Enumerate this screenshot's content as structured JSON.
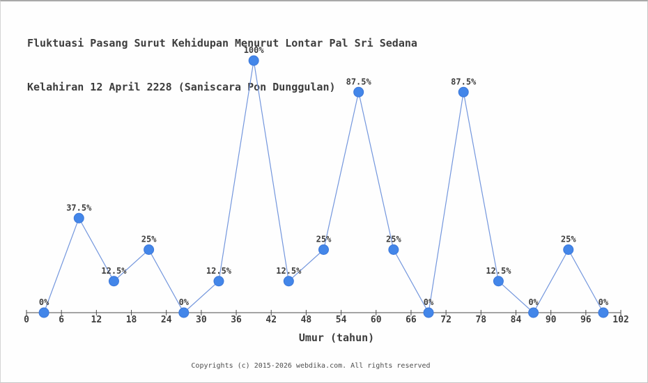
{
  "chart_data": {
    "type": "line",
    "title": "Fluktuasi Pasang Surut Kehidupan Menurut Lontar Pal Sri Sedana Kelahiran 12 April 2228 (Saniscara Pon Dunggulan)",
    "title_lines": [
      "Fluktuasi Pasang Surut Kehidupan Menurut Lontar Pal Sri Sedana",
      "Kelahiran 12 April 2228 (Saniscara Pon Dunggulan)"
    ],
    "xlabel": "Umur (tahun)",
    "ylabel": "",
    "x": [
      3,
      9,
      15,
      21,
      27,
      33,
      39,
      45,
      51,
      57,
      63,
      69,
      75,
      81,
      87,
      93,
      99
    ],
    "values": [
      0,
      37.5,
      12.5,
      25,
      0,
      12.5,
      100,
      12.5,
      25,
      87.5,
      25,
      0,
      87.5,
      12.5,
      0,
      25,
      0
    ],
    "point_labels": [
      "0%",
      "37.5%",
      "12.5%",
      "25%",
      "0%",
      "12.5%",
      "100%",
      "12.5%",
      "25%",
      "87.5%",
      "25%",
      "0%",
      "87.5%",
      "12.5%",
      "0%",
      "25%",
      "0%"
    ],
    "x_ticks": [
      0,
      6,
      12,
      18,
      24,
      30,
      36,
      42,
      48,
      54,
      60,
      66,
      72,
      78,
      84,
      90,
      96,
      102
    ],
    "xlim": [
      0,
      102
    ],
    "ylim": [
      0,
      100
    ],
    "grid": false,
    "legend": "none",
    "colors": {
      "marker": "#4386e9",
      "marker_border": "#3b77d9",
      "line": "#7396dd",
      "axis": "#4a4a4a",
      "text": "#3d3d3d",
      "footer_text": "#4d4d4d"
    }
  },
  "footer": {
    "copyright": "Copyrights (c) 2015-2026 webdika.com. All rights reserved"
  }
}
